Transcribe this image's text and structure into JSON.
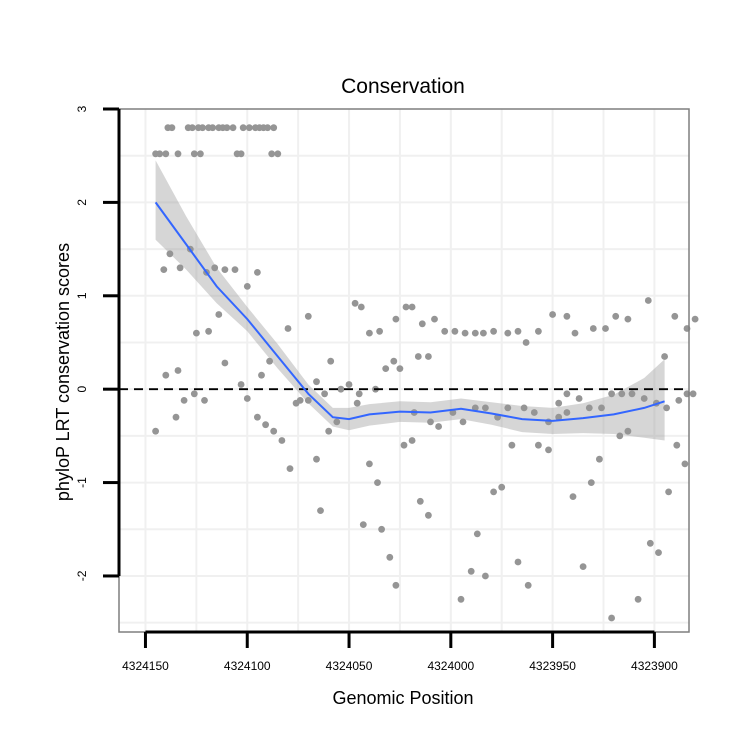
{
  "chart_data": {
    "type": "scatter",
    "title": "Conservation",
    "xlabel": "Genomic Position",
    "ylabel": "phyloP LRT conservation scores",
    "xlim": [
      4324163,
      4323883
    ],
    "ylim": [
      -2.6,
      3.0
    ],
    "x_reversed": true,
    "x_ticks": [
      4324150,
      4324100,
      4324050,
      4324000,
      4323950,
      4323900
    ],
    "x_tick_labels": [
      "4324150",
      "4324100",
      "4324050",
      "4324000",
      "4323950",
      "4323900"
    ],
    "y_ticks": [
      -2,
      -1,
      0,
      1,
      2,
      3
    ],
    "y_tick_labels": [
      "-2",
      "-1",
      "0",
      "1",
      "2",
      "3"
    ],
    "reference_line": {
      "y": 0,
      "style": "dashed",
      "color": "#000000"
    },
    "point_color": "#959595",
    "smooth_color": "#3366FF",
    "band_color": "#999999",
    "smooth": {
      "x": [
        4324145,
        4324130,
        4324115,
        4324100,
        4324085,
        4324070,
        4324058,
        4324050,
        4324040,
        4324025,
        4324010,
        4323995,
        4323980,
        4323965,
        4323950,
        4323935,
        4323920,
        4323905,
        4323895
      ],
      "y": [
        2.0,
        1.55,
        1.1,
        0.75,
        0.35,
        -0.05,
        -0.3,
        -0.32,
        -0.27,
        -0.24,
        -0.25,
        -0.21,
        -0.26,
        -0.32,
        -0.34,
        -0.31,
        -0.27,
        -0.2,
        -0.13
      ],
      "lower": [
        1.6,
        1.28,
        0.92,
        0.62,
        0.22,
        -0.15,
        -0.4,
        -0.44,
        -0.39,
        -0.35,
        -0.36,
        -0.32,
        -0.38,
        -0.46,
        -0.48,
        -0.47,
        -0.48,
        -0.52,
        -0.55
      ],
      "upper": [
        2.45,
        1.85,
        1.3,
        0.88,
        0.48,
        0.05,
        -0.2,
        -0.2,
        -0.16,
        -0.13,
        -0.14,
        -0.1,
        -0.14,
        -0.18,
        -0.2,
        -0.15,
        -0.06,
        0.12,
        0.32
      ]
    },
    "points": [
      [
        4324145,
        2.52
      ],
      [
        4324143,
        2.52
      ],
      [
        4324140,
        2.52
      ],
      [
        4324134,
        2.52
      ],
      [
        4324126,
        2.52
      ],
      [
        4324123,
        2.52
      ],
      [
        4324105,
        2.52
      ],
      [
        4324103,
        2.52
      ],
      [
        4324088,
        2.52
      ],
      [
        4324085,
        2.52
      ],
      [
        4324139,
        2.8
      ],
      [
        4324137,
        2.8
      ],
      [
        4324129,
        2.8
      ],
      [
        4324127,
        2.8
      ],
      [
        4324124,
        2.8
      ],
      [
        4324122,
        2.8
      ],
      [
        4324119,
        2.8
      ],
      [
        4324117,
        2.8
      ],
      [
        4324114,
        2.8
      ],
      [
        4324112,
        2.8
      ],
      [
        4324110,
        2.8
      ],
      [
        4324107,
        2.8
      ],
      [
        4324102,
        2.8
      ],
      [
        4324099,
        2.8
      ],
      [
        4324096,
        2.8
      ],
      [
        4324094,
        2.8
      ],
      [
        4324092,
        2.8
      ],
      [
        4324090,
        2.8
      ],
      [
        4324087,
        2.8
      ],
      [
        4324141,
        1.28
      ],
      [
        4324138,
        1.45
      ],
      [
        4324133,
        1.3
      ],
      [
        4324128,
        1.5
      ],
      [
        4324120,
        1.25
      ],
      [
        4324116,
        1.3
      ],
      [
        4324111,
        1.28
      ],
      [
        4324106,
        1.28
      ],
      [
        4324095,
        1.25
      ],
      [
        4324100,
        1.1
      ],
      [
        4324125,
        0.6
      ],
      [
        4324119,
        0.62
      ],
      [
        4324114,
        0.8
      ],
      [
        4324080,
        0.65
      ],
      [
        4324070,
        0.78
      ],
      [
        4324111,
        0.28
      ],
      [
        4324103,
        0.05
      ],
      [
        4324093,
        0.15
      ],
      [
        4324089,
        0.3
      ],
      [
        4324145,
        -0.45
      ],
      [
        4324140,
        0.15
      ],
      [
        4324134,
        0.2
      ],
      [
        4324131,
        -0.12
      ],
      [
        4324126,
        -0.05
      ],
      [
        4324135,
        -0.3
      ],
      [
        4324121,
        -0.12
      ],
      [
        4324100,
        -0.1
      ],
      [
        4324095,
        -0.3
      ],
      [
        4324091,
        -0.38
      ],
      [
        4324087,
        -0.45
      ],
      [
        4324083,
        -0.55
      ],
      [
        4324079,
        -0.85
      ],
      [
        4324076,
        -0.15
      ],
      [
        4324074,
        -0.12
      ],
      [
        4324070,
        -0.12
      ],
      [
        4324066,
        -0.75
      ],
      [
        4324064,
        -1.3
      ],
      [
        4324060,
        -0.45
      ],
      [
        4324056,
        -0.35
      ],
      [
        4324054,
        0.0
      ],
      [
        4324050,
        0.05
      ],
      [
        4324046,
        -0.15
      ],
      [
        4324043,
        -1.45
      ],
      [
        4324040,
        -0.8
      ],
      [
        4324036,
        -1.0
      ],
      [
        4324034,
        -1.5
      ],
      [
        4324030,
        -1.8
      ],
      [
        4324027,
        -2.1
      ],
      [
        4324023,
        -0.6
      ],
      [
        4324019,
        -0.55
      ],
      [
        4324015,
        -1.2
      ],
      [
        4324011,
        -1.35
      ],
      [
        4324006,
        -0.4
      ],
      [
        4323999,
        -0.25
      ],
      [
        4323995,
        -2.25
      ],
      [
        4323990,
        -1.95
      ],
      [
        4323987,
        -1.55
      ],
      [
        4323983,
        -2.0
      ],
      [
        4323979,
        -1.1
      ],
      [
        4323975,
        -1.05
      ],
      [
        4323970,
        -0.6
      ],
      [
        4323967,
        -1.85
      ],
      [
        4323962,
        -2.1
      ],
      [
        4323957,
        -0.6
      ],
      [
        4323952,
        -0.65
      ],
      [
        4323947,
        -0.15
      ],
      [
        4323943,
        -0.25
      ],
      [
        4323940,
        -1.15
      ],
      [
        4323935,
        -1.9
      ],
      [
        4323931,
        -1.0
      ],
      [
        4323927,
        -0.75
      ],
      [
        4323921,
        -2.45
      ],
      [
        4323917,
        -0.5
      ],
      [
        4323913,
        -0.45
      ],
      [
        4323908,
        -2.25
      ],
      [
        4323902,
        -1.65
      ],
      [
        4323898,
        -1.75
      ],
      [
        4323893,
        -1.1
      ],
      [
        4323889,
        -0.6
      ],
      [
        4323885,
        -0.8
      ],
      [
        4324059,
        0.3
      ],
      [
        4324066,
        0.08
      ],
      [
        4324062,
        -0.05
      ],
      [
        4324047,
        0.92
      ],
      [
        4324044,
        0.88
      ],
      [
        4324040,
        0.6
      ],
      [
        4324035,
        0.62
      ],
      [
        4324027,
        0.75
      ],
      [
        4324022,
        0.88
      ],
      [
        4324019,
        0.88
      ],
      [
        4324014,
        0.7
      ],
      [
        4324008,
        0.75
      ],
      [
        4324003,
        0.62
      ],
      [
        4323998,
        0.62
      ],
      [
        4323993,
        0.6
      ],
      [
        4323988,
        0.6
      ],
      [
        4323984,
        0.6
      ],
      [
        4323979,
        0.62
      ],
      [
        4323972,
        0.6
      ],
      [
        4323967,
        0.62
      ],
      [
        4323963,
        0.5
      ],
      [
        4323957,
        0.62
      ],
      [
        4323950,
        0.8
      ],
      [
        4323943,
        0.78
      ],
      [
        4323939,
        0.6
      ],
      [
        4323930,
        0.65
      ],
      [
        4323924,
        0.65
      ],
      [
        4323919,
        0.78
      ],
      [
        4323913,
        0.75
      ],
      [
        4323903,
        0.95
      ],
      [
        4323895,
        0.35
      ],
      [
        4323890,
        0.78
      ],
      [
        4323884,
        0.65
      ],
      [
        4323880,
        0.75
      ],
      [
        4324032,
        0.22
      ],
      [
        4324028,
        0.3
      ],
      [
        4324025,
        0.22
      ],
      [
        4324016,
        0.35
      ],
      [
        4324011,
        0.35
      ],
      [
        4324037,
        0.0
      ],
      [
        4324045,
        -0.05
      ],
      [
        4324018,
        -0.25
      ],
      [
        4324010,
        -0.35
      ],
      [
        4323994,
        -0.35
      ],
      [
        4323988,
        -0.2
      ],
      [
        4323983,
        -0.2
      ],
      [
        4323977,
        -0.3
      ],
      [
        4323972,
        -0.2
      ],
      [
        4323964,
        -0.2
      ],
      [
        4323959,
        -0.25
      ],
      [
        4323952,
        -0.35
      ],
      [
        4323947,
        -0.3
      ],
      [
        4323943,
        -0.05
      ],
      [
        4323937,
        -0.1
      ],
      [
        4323932,
        -0.2
      ],
      [
        4323926,
        -0.2
      ],
      [
        4323921,
        -0.05
      ],
      [
        4323916,
        -0.05
      ],
      [
        4323911,
        -0.05
      ],
      [
        4323905,
        -0.1
      ],
      [
        4323899,
        -0.15
      ],
      [
        4323894,
        -0.2
      ],
      [
        4323888,
        -0.12
      ],
      [
        4323884,
        -0.05
      ],
      [
        4323881,
        -0.05
      ]
    ]
  }
}
